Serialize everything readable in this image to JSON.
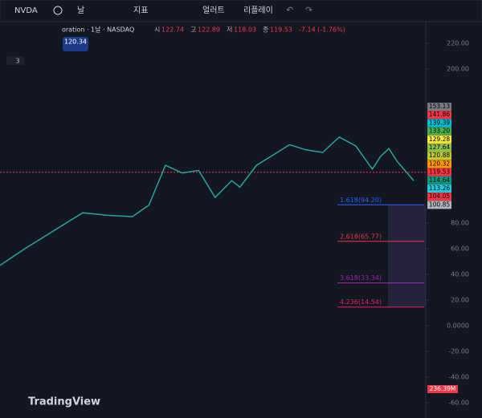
{
  "toolbar": {
    "symbol": "NVDA",
    "interval": "날",
    "indicators": "지표",
    "alerts": "얼러트",
    "replay": "리플레이"
  },
  "legend": {
    "name": "oration · 1날 · NASDAQ",
    "ohlc": [
      {
        "key": "시",
        "value": "122.74"
      },
      {
        "key": "고",
        "value": "122.89"
      },
      {
        "key": "저",
        "value": "118.03"
      },
      {
        "key": "종",
        "value": "119.53"
      }
    ],
    "change": "-7.14 (-1.76%)",
    "badge": "120.34",
    "count": "3"
  },
  "price_labels": [
    {
      "text": "153.13",
      "color": "#787b86"
    },
    {
      "text": "141.86",
      "color": "#f23645"
    },
    {
      "text": "139.39",
      "color": "#00bcd4"
    },
    {
      "text": "133.20",
      "color": "#4caf50"
    },
    {
      "text": "129.28",
      "color": "#ffeb3b"
    },
    {
      "text": "127.64",
      "color": "#8bc34a"
    },
    {
      "text": "120.88",
      "color": "#c0ca33"
    },
    {
      "text": "120.32",
      "color": "#ff9800"
    },
    {
      "text": "119.53",
      "color": "#f23645"
    },
    {
      "text": "114.64",
      "color": "#089981"
    },
    {
      "text": "113.26",
      "color": "#26c6da"
    },
    {
      "text": "104.05",
      "color": "#f23645"
    },
    {
      "text": "100.85",
      "color": "#b2b5be"
    }
  ],
  "volume_label": "236.39M",
  "fib_levels": [
    {
      "label": "1.618(94.20)",
      "price": 94.2,
      "color": "#2962ff"
    },
    {
      "label": "2.618(65.77)",
      "price": 65.77,
      "color": "#f23645"
    },
    {
      "label": "3.618(33.34)",
      "price": 33.34,
      "color": "#9c27b0"
    },
    {
      "label": "4.236(14.54)",
      "price": 14.54,
      "color": "#e91e63"
    }
  ],
  "watermark": "TradingView",
  "chart_data": {
    "type": "line",
    "color": "#26a69a",
    "x": [
      0,
      15,
      30,
      50,
      65,
      80,
      90,
      100,
      110,
      120,
      130,
      140,
      145,
      155,
      165,
      175,
      185,
      195,
      205,
      215,
      225,
      230,
      235,
      240,
      250
    ],
    "values": [
      47,
      60,
      72,
      88,
      86,
      85,
      94,
      125,
      119,
      121,
      100,
      113,
      108,
      125,
      133,
      141,
      137,
      135,
      147,
      140,
      122,
      132,
      138,
      128,
      113
    ],
    "xlim": [
      0,
      250
    ],
    "ylim": [
      -65,
      236.25
    ],
    "yticks": [
      {
        "value": 220,
        "label": "220.00"
      },
      {
        "value": 200,
        "label": "200.00"
      },
      {
        "value": 80,
        "label": "80.00"
      },
      {
        "value": 60,
        "label": "60.00"
      },
      {
        "value": 40,
        "label": "40.00"
      },
      {
        "value": 20,
        "label": "20.00"
      },
      {
        "value": 0,
        "label": "0.0000"
      },
      {
        "value": -20,
        "label": "-20.00"
      },
      {
        "value": -40,
        "label": "-40.00"
      },
      {
        "value": -60,
        "label": "-60.00"
      }
    ],
    "current_price": 119.53
  }
}
